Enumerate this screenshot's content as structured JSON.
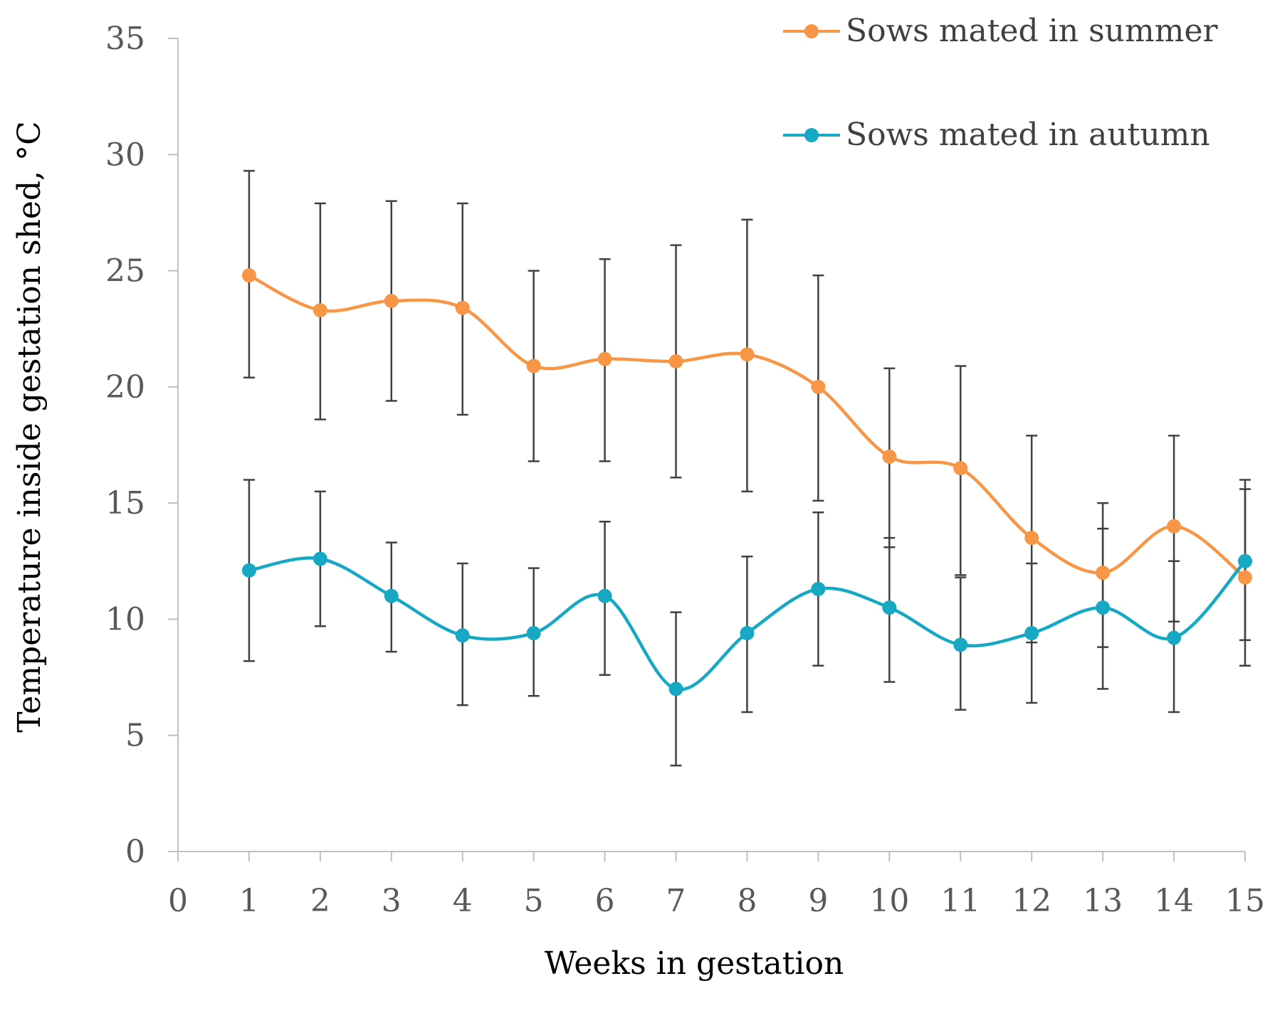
{
  "chart_data": {
    "type": "line",
    "title": "",
    "xlabel": "Weeks in gestation",
    "ylabel": "Temperature inside gestation shed, °C",
    "xlim": [
      0,
      15
    ],
    "ylim": [
      0,
      35
    ],
    "x_ticks": [
      0,
      1,
      2,
      3,
      4,
      5,
      6,
      7,
      8,
      9,
      10,
      11,
      12,
      13,
      14,
      15
    ],
    "y_ticks": [
      0,
      5,
      10,
      15,
      20,
      25,
      30,
      35
    ],
    "grid": false,
    "legend_position": "top-right",
    "x": [
      1,
      2,
      3,
      4,
      5,
      6,
      7,
      8,
      9,
      10,
      11,
      12,
      13,
      14,
      15
    ],
    "series": [
      {
        "name": "Sows mated in summer",
        "color": "#f79646",
        "values": [
          24.8,
          23.3,
          23.7,
          23.4,
          20.9,
          21.2,
          21.1,
          21.4,
          20.0,
          17.0,
          16.5,
          13.5,
          12.0,
          14.0,
          11.8
        ],
        "error_low": [
          20.4,
          18.6,
          19.4,
          18.8,
          16.8,
          16.8,
          16.1,
          15.5,
          15.1,
          13.1,
          11.9,
          9.0,
          8.8,
          9.9,
          9.1
        ],
        "error_high": [
          29.3,
          27.9,
          28.0,
          27.9,
          25.0,
          25.5,
          26.1,
          27.2,
          24.8,
          20.8,
          20.9,
          17.9,
          15.0,
          17.9,
          15.6
        ]
      },
      {
        "name": "Sows mated in autumn",
        "color": "#17a8c4",
        "values": [
          12.1,
          12.6,
          11.0,
          9.3,
          9.4,
          11.0,
          7.0,
          9.4,
          11.3,
          10.5,
          8.9,
          9.4,
          10.5,
          9.2,
          12.5
        ],
        "error_low": [
          8.2,
          9.7,
          8.6,
          6.3,
          6.7,
          7.6,
          3.7,
          6.0,
          8.0,
          7.3,
          6.1,
          6.4,
          7.0,
          6.0,
          8.0
        ],
        "error_high": [
          16.0,
          15.5,
          13.3,
          12.4,
          12.2,
          14.2,
          10.3,
          12.7,
          14.6,
          13.5,
          11.8,
          12.4,
          13.9,
          12.5,
          16.0
        ]
      }
    ]
  }
}
